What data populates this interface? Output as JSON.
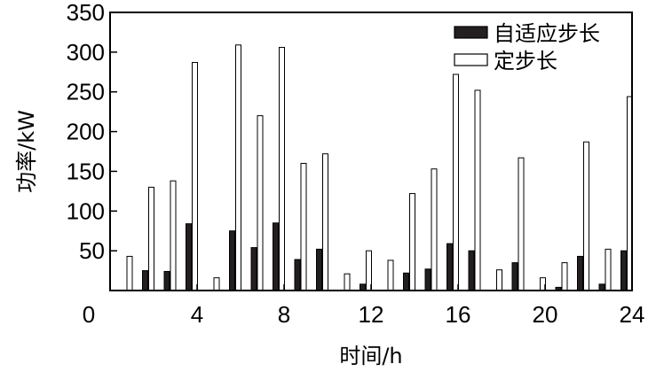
{
  "chart_data": {
    "type": "bar",
    "xlabel": "时间/h",
    "ylabel": "功率/kW",
    "xlim": [
      0,
      24
    ],
    "ylim": [
      0,
      350
    ],
    "x_ticks": [
      "0",
      "4",
      "8",
      "12",
      "16",
      "20",
      "24"
    ],
    "y_ticks": [
      "50",
      "100",
      "150",
      "200",
      "250",
      "300",
      "350"
    ],
    "legend_position": "top-right",
    "categories": [
      1,
      2,
      3,
      4,
      5,
      6,
      7,
      8,
      9,
      10,
      11,
      12,
      13,
      14,
      15,
      16,
      17,
      18,
      19,
      20,
      21,
      22,
      23,
      24
    ],
    "series": [
      {
        "name": "自适应步长",
        "fill": "#231f20",
        "values": [
          0,
          25,
          24,
          84,
          0,
          75,
          54,
          85,
          39,
          52,
          0,
          8,
          0,
          22,
          27,
          59,
          50,
          0,
          35,
          0,
          4,
          43,
          8,
          50
        ]
      },
      {
        "name": "定步长",
        "fill": "#ffffff",
        "values": [
          43,
          130,
          138,
          287,
          16,
          309,
          220,
          306,
          160,
          172,
          21,
          50,
          38,
          122,
          153,
          272,
          252,
          26,
          167,
          16,
          35,
          187,
          52,
          244
        ]
      }
    ]
  }
}
